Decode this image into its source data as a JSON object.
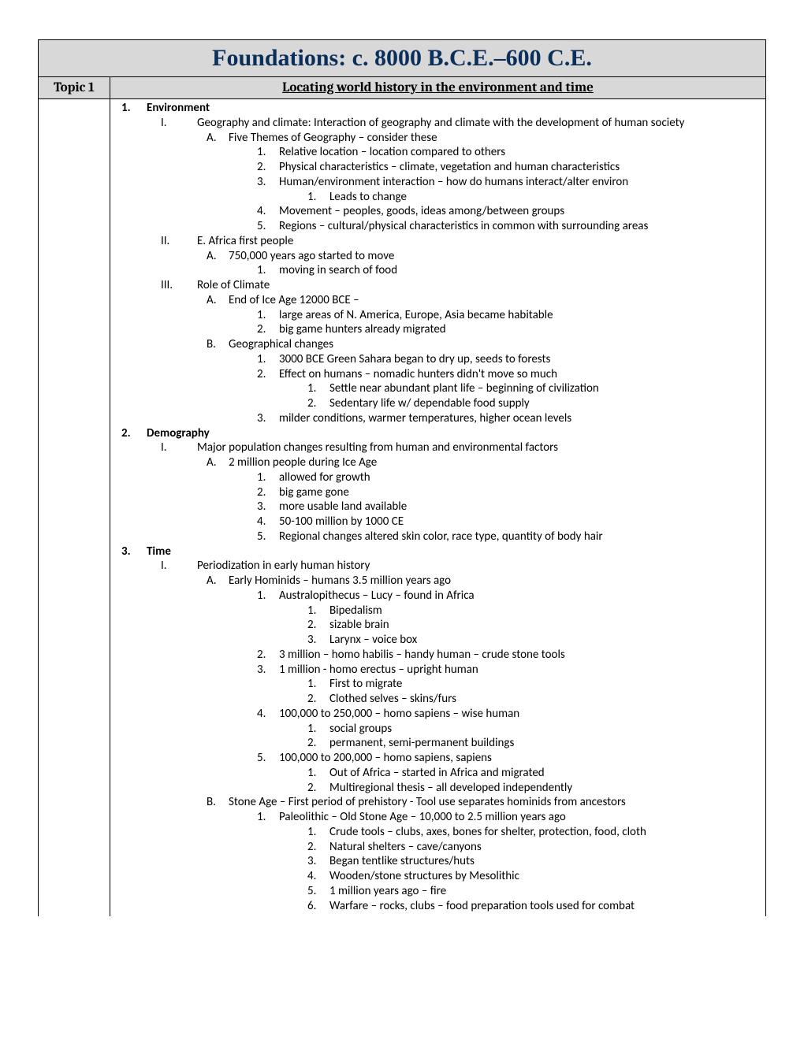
{
  "page_title": "Foundations: c. 8000 B.C.E.–600 C.E.",
  "topic_label": "Topic 1",
  "topic_title": "Locating world history in the environment and time",
  "colors": {
    "header_bg": "#d8d8d8",
    "title_color": "#0b2f5b",
    "border": "#000000",
    "text": "#000000",
    "page_bg": "#ffffff"
  },
  "typography": {
    "title_font": "Times New Roman",
    "title_size_pt": 22,
    "topic_font": "Cambria",
    "topic_size_pt": 13,
    "body_font": "Calibri",
    "body_size_pt": 11
  },
  "outline": [
    {
      "n": "1.",
      "t": "Environment",
      "c": [
        {
          "n": "I.",
          "t": "Geography and climate: Interaction of geography and climate with the development of human society",
          "c": [
            {
              "n": "A.",
              "t": "Five Themes of Geography – consider these",
              "c": [
                {
                  "n": "1.",
                  "t": "Relative location – location compared to others"
                },
                {
                  "n": "2.",
                  "t": "Physical characteristics – climate, vegetation and human characteristics"
                },
                {
                  "n": "3.",
                  "t": "Human/environment interaction – how do humans interact/alter environ",
                  "c": [
                    {
                      "n": "1.",
                      "t": "Leads to change"
                    }
                  ]
                },
                {
                  "n": "4.",
                  "t": "Movement – peoples, goods, ideas among/between groups"
                },
                {
                  "n": "5.",
                  "t": "Regions – cultural/physical characteristics in common with surrounding areas"
                }
              ]
            }
          ]
        },
        {
          "n": "II.",
          "t": "E. Africa first people",
          "c": [
            {
              "n": "A.",
              "t": "750,000 years ago started to move",
              "c": [
                {
                  "n": "1.",
                  "t": "moving in search of food"
                }
              ]
            }
          ]
        },
        {
          "n": "III.",
          "t": "Role of Climate",
          "c": [
            {
              "n": "A.",
              "t": "End of Ice Age 12000 BCE –",
              "c": [
                {
                  "n": "1.",
                  "t": "large areas of N. America, Europe, Asia became habitable"
                },
                {
                  "n": "2.",
                  "t": "big game hunters already migrated"
                }
              ]
            },
            {
              "n": "B.",
              "t": "Geographical changes",
              "c": [
                {
                  "n": "1.",
                  "t": "3000 BCE Green Sahara began to dry up, seeds to forests"
                },
                {
                  "n": "2.",
                  "t": "Effect on humans – nomadic hunters didn't move so much",
                  "c": [
                    {
                      "n": "1.",
                      "t": "Settle near abundant plant life – beginning of civilization"
                    },
                    {
                      "n": "2.",
                      "t": "Sedentary life w/ dependable food supply"
                    }
                  ]
                },
                {
                  "n": "3.",
                  "t": "milder conditions, warmer temperatures, higher ocean levels"
                }
              ]
            }
          ]
        }
      ]
    },
    {
      "n": "2.",
      "t": "Demography",
      "c": [
        {
          "n": "I.",
          "t": "Major population changes resulting from human and environmental factors",
          "c": [
            {
              "n": "A.",
              "t": "2 million people during Ice Age",
              "c": [
                {
                  "n": "1.",
                  "t": "allowed for growth"
                },
                {
                  "n": "2.",
                  "t": "big game gone"
                },
                {
                  "n": "3.",
                  "t": "more usable land available"
                },
                {
                  "n": "4.",
                  "t": "50-100 million by 1000 CE"
                },
                {
                  "n": "5.",
                  "t": "Regional changes altered skin color, race type, quantity of body hair"
                }
              ]
            }
          ]
        }
      ]
    },
    {
      "n": "3.",
      "t": "Time",
      "c": [
        {
          "n": "I.",
          "t": "Periodization in early human history",
          "c": [
            {
              "n": "A.",
              "t": "Early Hominids – humans 3.5 million years ago",
              "c": [
                {
                  "n": "1.",
                  "t": "Australopithecus – Lucy – found in Africa",
                  "c": [
                    {
                      "n": "1.",
                      "t": "Bipedalism"
                    },
                    {
                      "n": "2.",
                      "t": "sizable brain"
                    },
                    {
                      "n": "3.",
                      "t": "Larynx – voice box"
                    }
                  ]
                },
                {
                  "n": "2.",
                  "t": "3 million – homo habilis – handy human – crude stone tools"
                },
                {
                  "n": "3.",
                  "t": "1 million - homo erectus – upright human",
                  "c": [
                    {
                      "n": "1.",
                      "t": "First to migrate"
                    },
                    {
                      "n": "2.",
                      "t": "Clothed selves – skins/furs"
                    }
                  ]
                },
                {
                  "n": "4.",
                  "t": "100,000 to 250,000 – homo sapiens – wise human",
                  "c": [
                    {
                      "n": "1.",
                      "t": "social groups"
                    },
                    {
                      "n": "2.",
                      "t": "permanent, semi-permanent buildings"
                    }
                  ]
                },
                {
                  "n": "5.",
                  "t": "100,000 to 200,000 – homo sapiens, sapiens",
                  "c": [
                    {
                      "n": "1.",
                      "t": "Out of Africa – started in Africa and migrated"
                    },
                    {
                      "n": "2.",
                      "t": "Multiregional thesis – all developed independently"
                    }
                  ]
                }
              ]
            },
            {
              "n": "B.",
              "t": "Stone Age – First period of prehistory - Tool use separates hominids from ancestors",
              "c": [
                {
                  "n": "1.",
                  "t": "Paleolithic – Old Stone Age – 10,000 to 2.5 million years ago",
                  "c": [
                    {
                      "n": "1.",
                      "t": "Crude tools – clubs, axes, bones for shelter, protection, food, cloth"
                    },
                    {
                      "n": "2.",
                      "t": "Natural shelters – cave/canyons"
                    },
                    {
                      "n": "3.",
                      "t": "Began tentlike structures/huts"
                    },
                    {
                      "n": "4.",
                      "t": "Wooden/stone structures by Mesolithic"
                    },
                    {
                      "n": "5.",
                      "t": "1 million years ago – fire"
                    },
                    {
                      "n": "6.",
                      "t": "Warfare – rocks, clubs – food preparation tools used for combat"
                    }
                  ]
                }
              ]
            }
          ]
        }
      ]
    }
  ]
}
